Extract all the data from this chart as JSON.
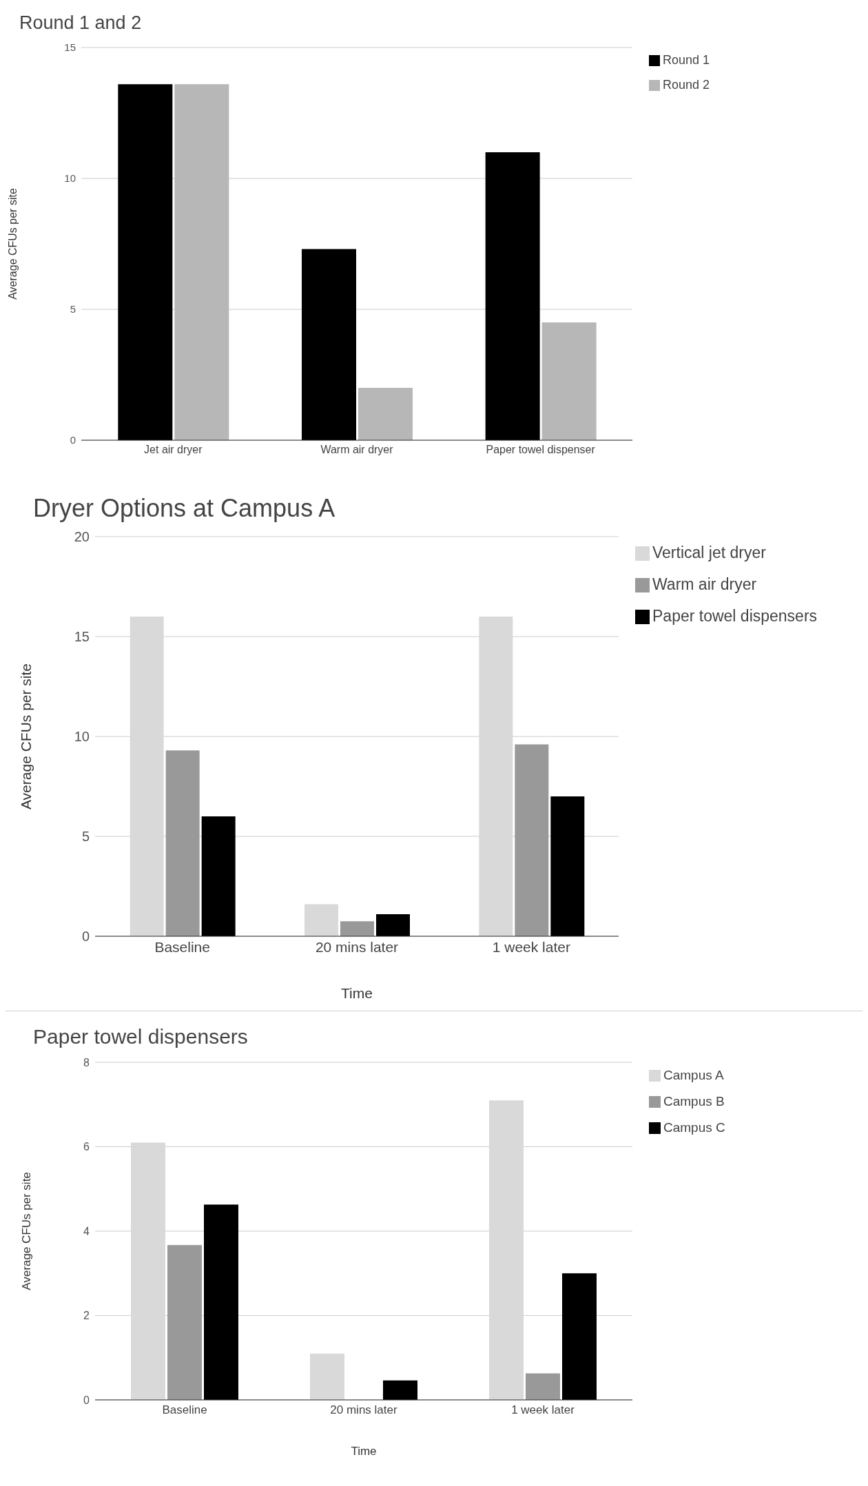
{
  "chart_data": [
    {
      "type": "bar",
      "title": "Round 1 and 2",
      "ylabel": "Average CFUs per site",
      "categories": [
        "Jet air dryer",
        "Warm air dryer",
        "Paper towel dispenser"
      ],
      "series": [
        {
          "name": "Round 1",
          "color": "#000000",
          "values": [
            13.6,
            7.3,
            11
          ]
        },
        {
          "name": "Round 2",
          "color": "#b7b7b7",
          "values": [
            13.6,
            2,
            4.5
          ]
        }
      ],
      "ylim": [
        0,
        15
      ],
      "yticks": [
        0,
        5,
        10,
        15
      ],
      "grid": "y",
      "legend": "top right"
    },
    {
      "type": "bar",
      "title": "Dryer Options at Campus A",
      "xlabel": "Time",
      "ylabel": "Average CFUs per site",
      "categories": [
        "Baseline",
        "20 mins later",
        "1 week later"
      ],
      "series": [
        {
          "name": "Vertical jet dryer",
          "color": "#d9d9d9",
          "values": [
            16,
            1.6,
            16
          ]
        },
        {
          "name": "Warm air dryer",
          "color": "#999999",
          "values": [
            9.3,
            0.75,
            9.6
          ]
        },
        {
          "name": "Paper towel dispensers",
          "color": "#000000",
          "values": [
            6,
            1.1,
            7
          ]
        }
      ],
      "ylim": [
        0,
        20
      ],
      "yticks": [
        0,
        5,
        10,
        15,
        20
      ],
      "grid": "y",
      "legend": "top right"
    },
    {
      "type": "bar",
      "title": "Paper towel dispensers",
      "xlabel": "Time",
      "ylabel": "Average CFUs per site",
      "categories": [
        "Baseline",
        "20 mins later",
        "1 week later"
      ],
      "series": [
        {
          "name": "Campus A",
          "color": "#d9d9d9",
          "values": [
            6.1,
            1.1,
            7.1
          ]
        },
        {
          "name": "Campus B",
          "color": "#999999",
          "values": [
            3.67,
            0,
            0.63
          ]
        },
        {
          "name": "Campus C",
          "color": "#000000",
          "values": [
            4.63,
            0.46,
            3
          ]
        }
      ],
      "ylim": [
        0,
        8
      ],
      "yticks": [
        0,
        2,
        4,
        6,
        8
      ],
      "grid": "y",
      "legend": "top right"
    }
  ]
}
